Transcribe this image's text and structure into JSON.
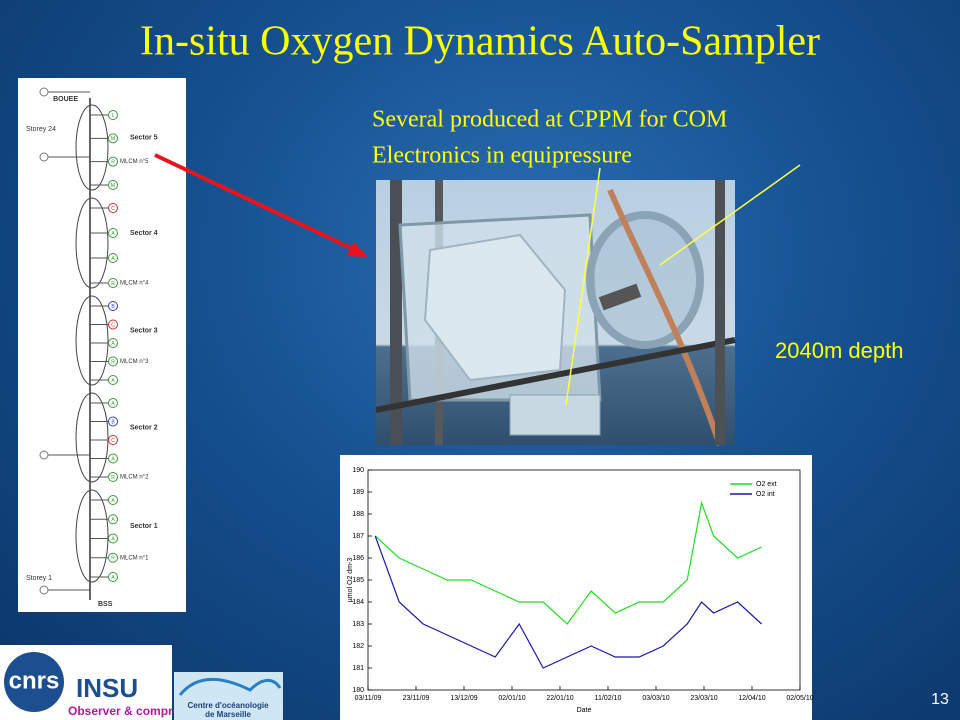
{
  "title": "In-situ Oxygen Dynamics Auto-Sampler",
  "caption": [
    "Several produced at CPPM for COM",
    "Electronics in equipressure"
  ],
  "depth_note": "2040m depth",
  "page_number": "13",
  "diagram": {
    "buoy": "BOUEE",
    "anchor": "BSS",
    "storeys": [
      "Storey 24",
      "Storey 1"
    ],
    "sectors": [
      "Sector 5",
      "Sector 4",
      "Sector 3",
      "Sector 2",
      "Sector 1"
    ],
    "modules": [
      "MLCM n°5",
      "MLCM n°4",
      "MLCM n°3",
      "MLCM n°2",
      "MLCM n°1"
    ],
    "sector_nodes": [
      [
        "L",
        "M",
        "R",
        "M"
      ],
      [
        "C",
        "A",
        "A",
        "R"
      ],
      [
        "B",
        "C",
        "A",
        "R",
        "A"
      ],
      [
        "A",
        "B",
        "C",
        "A",
        "R"
      ],
      [
        "A",
        "A",
        "A",
        "R",
        "A"
      ]
    ]
  },
  "logos": {
    "cnrs": "cnrs",
    "insu": "INSU",
    "insu_tagline": "Observer & comprendre",
    "com": [
      "Centre d'océanologie",
      "de Marseille"
    ]
  },
  "chart_data": {
    "type": "line",
    "x_label": "Date",
    "y_label": "µmol O2 dm-3",
    "x": [
      "06/11/09",
      "16/11/09",
      "26/11/09",
      "06/12/09",
      "16/12/09",
      "26/12/09",
      "05/01/10",
      "15/01/10",
      "25/01/10",
      "04/02/10",
      "14/02/10",
      "24/02/10",
      "06/03/10",
      "16/03/10",
      "22/03/10",
      "27/03/10",
      "06/04/10",
      "16/04/10"
    ],
    "series": [
      {
        "name": "O2 ext",
        "color": "#22dd22",
        "values": [
          187,
          186,
          185.5,
          185,
          185,
          184.5,
          184,
          184,
          183,
          184.5,
          183.5,
          184,
          184,
          185,
          188.5,
          187,
          186,
          186.5
        ]
      },
      {
        "name": "O2 int",
        "color": "#1a1aa8",
        "values": [
          187,
          184,
          183,
          182.5,
          182,
          181.5,
          183,
          181,
          181.5,
          182,
          181.5,
          181.5,
          182,
          183,
          184,
          183.5,
          184,
          183
        ]
      }
    ],
    "xlim": [
      "03/11/09",
      "02/05/10"
    ],
    "xticks": [
      "03/11/09",
      "23/11/09",
      "13/12/09",
      "02/01/10",
      "22/01/10",
      "11/02/10",
      "03/03/10",
      "23/03/10",
      "12/04/10",
      "02/05/10"
    ],
    "ylim": [
      180,
      190
    ],
    "yticks": [
      180,
      181,
      182,
      183,
      184,
      185,
      186,
      187,
      188,
      189,
      190
    ],
    "legend": "upper right"
  }
}
